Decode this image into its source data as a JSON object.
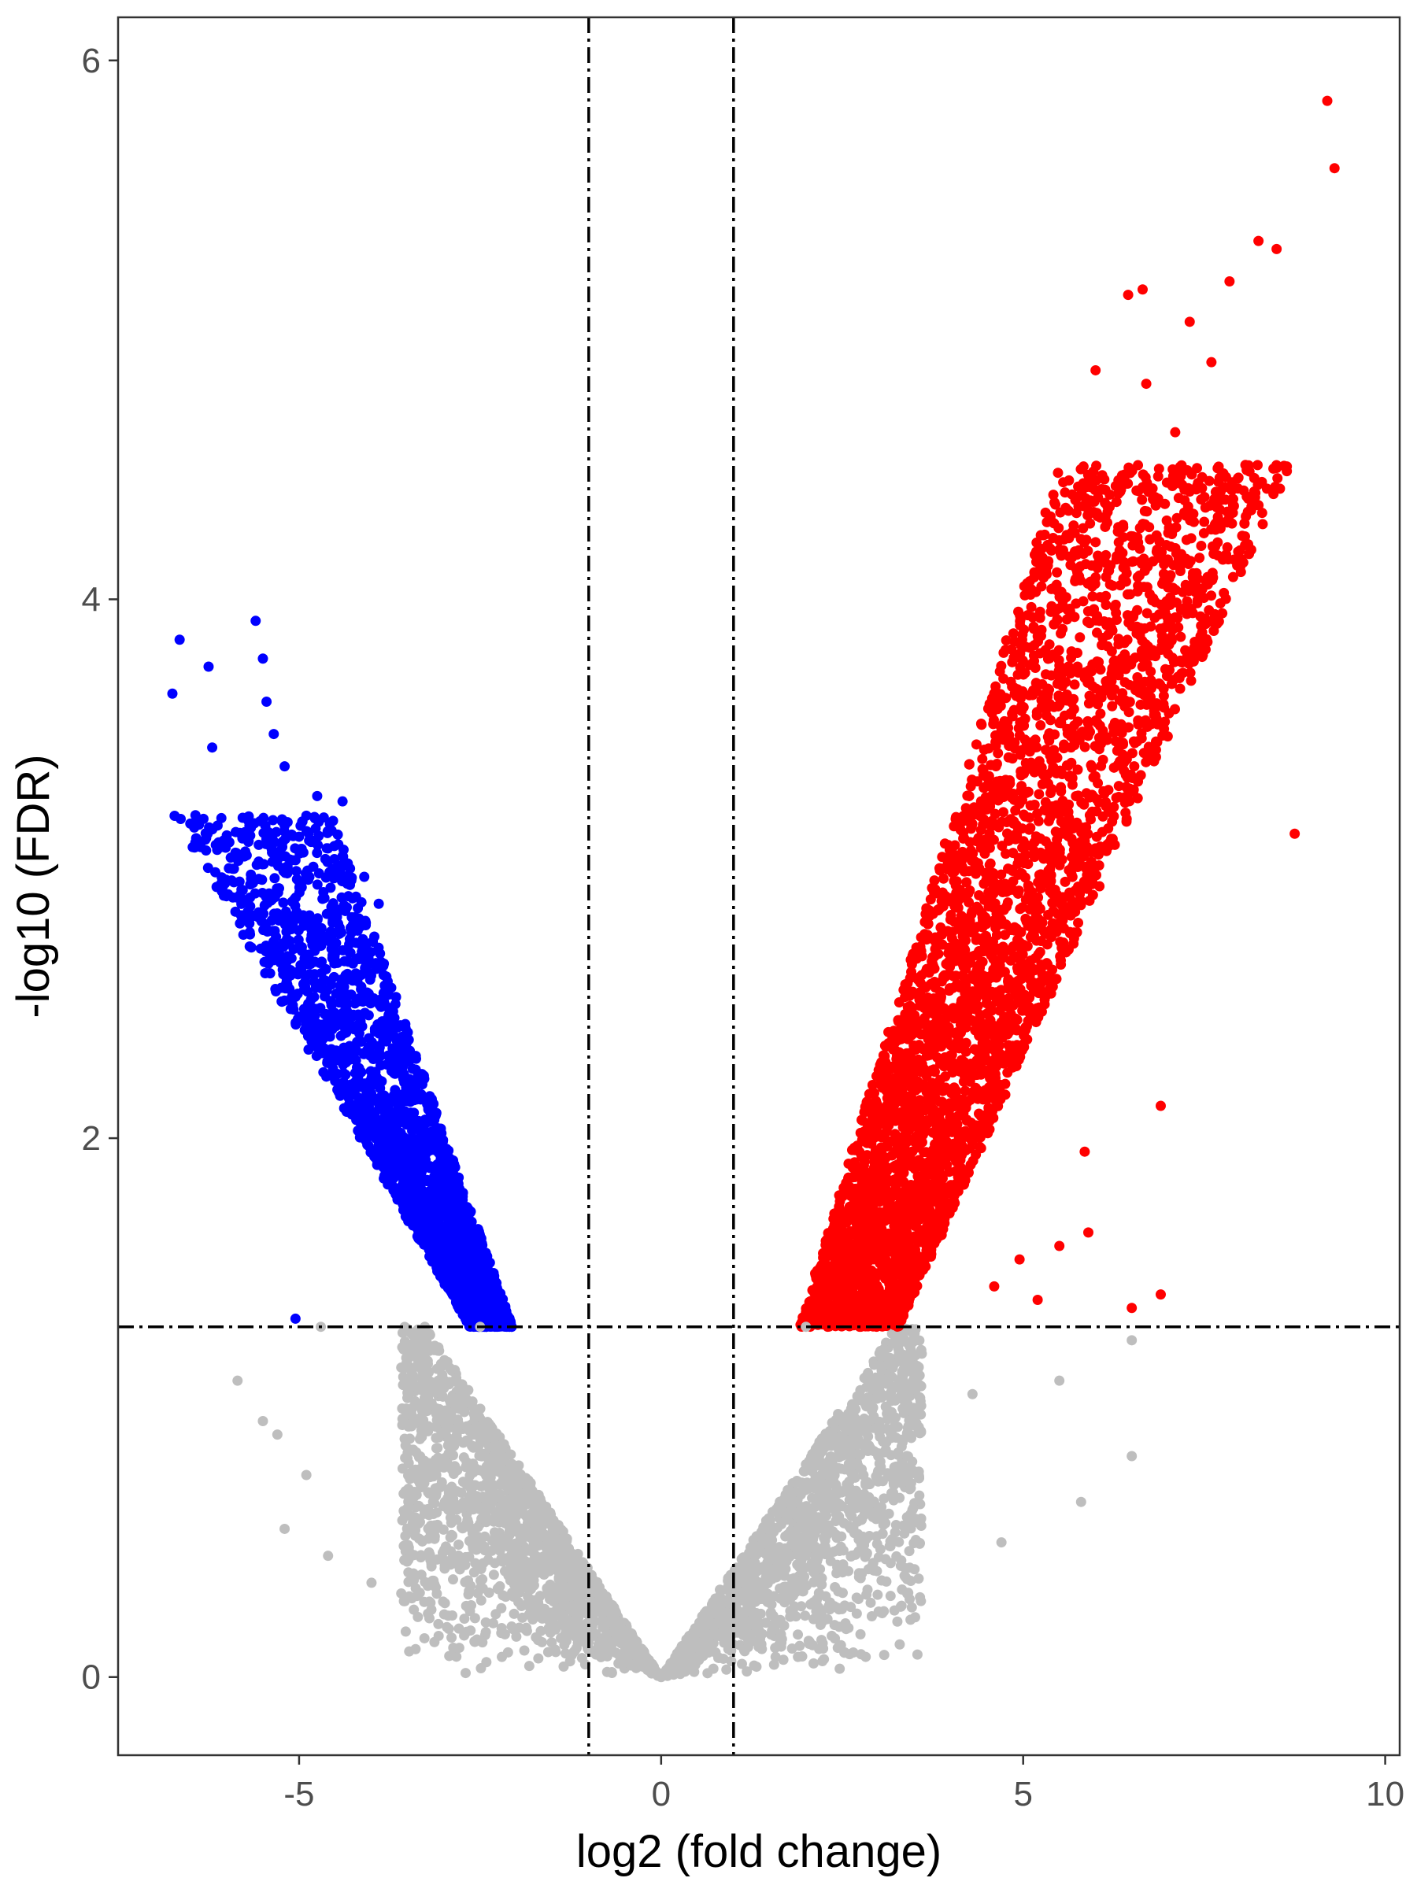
{
  "chart_data": {
    "type": "scatter",
    "title": "",
    "xlabel": "log2 (fold change)",
    "ylabel": "-log10 (FDR)",
    "xlim": [
      -7.5,
      10.2
    ],
    "ylim": [
      -0.29,
      6.16
    ],
    "xticks": [
      -5,
      0,
      5,
      10
    ],
    "yticks": [
      0,
      2,
      4,
      6
    ],
    "grid": false,
    "legend": "none",
    "thresholds": {
      "x": [
        -1,
        1
      ],
      "y": 1.3
    },
    "colors": {
      "down": "#0000ff",
      "up": "#ff0000",
      "nonsignificant": "#bebebe",
      "threshold_line": "#000000"
    },
    "series": [
      {
        "group": "down",
        "approx_range": {
          "x": [
            -6.8,
            -2.1
          ],
          "y": [
            1.3,
            3.9
          ]
        },
        "points": [
          [
            -6.75,
            3.65
          ],
          [
            -6.65,
            3.85
          ],
          [
            -6.25,
            3.75
          ],
          [
            -6.2,
            3.45
          ],
          [
            -5.6,
            3.92
          ],
          [
            -5.5,
            3.78
          ],
          [
            -5.45,
            3.62
          ],
          [
            -5.9,
            3.0
          ],
          [
            -5.7,
            3.1
          ],
          [
            -5.35,
            3.5
          ],
          [
            -5.2,
            3.38
          ],
          [
            -4.75,
            3.27
          ],
          [
            -4.4,
            3.25
          ],
          [
            -4.1,
            2.97
          ],
          [
            -3.9,
            2.87
          ],
          [
            -5.05,
            1.33
          ]
        ]
      },
      {
        "group": "up",
        "approx_range": {
          "x": [
            1.9,
            9.3
          ],
          "y": [
            1.3,
            5.85
          ]
        },
        "points": [
          [
            9.2,
            5.85
          ],
          [
            9.3,
            5.6
          ],
          [
            8.25,
            5.33
          ],
          [
            8.5,
            5.3
          ],
          [
            7.85,
            5.18
          ],
          [
            6.65,
            5.15
          ],
          [
            6.45,
            5.13
          ],
          [
            7.3,
            5.03
          ],
          [
            7.6,
            4.88
          ],
          [
            6.0,
            4.85
          ],
          [
            6.7,
            4.8
          ],
          [
            7.1,
            4.62
          ],
          [
            7.3,
            4.4
          ],
          [
            7.9,
            4.35
          ],
          [
            8.75,
            3.13
          ],
          [
            6.9,
            2.12
          ],
          [
            5.85,
            1.95
          ],
          [
            5.9,
            1.65
          ],
          [
            5.5,
            1.6
          ],
          [
            4.95,
            1.55
          ],
          [
            5.2,
            1.4
          ],
          [
            6.5,
            1.37
          ],
          [
            6.9,
            1.42
          ],
          [
            4.6,
            1.45
          ]
        ]
      },
      {
        "group": "nonsignificant",
        "approx_range": {
          "x": [
            -5.9,
            6.5
          ],
          "y": [
            0.0,
            1.3
          ]
        },
        "points": [
          [
            0.0,
            0.0
          ],
          [
            -5.85,
            1.1
          ],
          [
            -5.5,
            0.95
          ],
          [
            -5.3,
            0.9
          ],
          [
            -4.9,
            0.75
          ],
          [
            -5.2,
            0.55
          ],
          [
            -4.6,
            0.45
          ],
          [
            -4.0,
            0.35
          ],
          [
            -3.2,
            0.28
          ],
          [
            -2.0,
            0.15
          ],
          [
            -1.0,
            0.1
          ],
          [
            1.0,
            0.12
          ],
          [
            2.2,
            0.25
          ],
          [
            3.5,
            0.4
          ],
          [
            4.7,
            0.5
          ],
          [
            5.8,
            0.65
          ],
          [
            6.5,
            0.82
          ],
          [
            6.5,
            1.25
          ],
          [
            5.5,
            1.1
          ],
          [
            4.3,
            1.05
          ],
          [
            3.6,
            1.2
          ],
          [
            -4.7,
            1.3
          ],
          [
            -2.5,
            1.3
          ],
          [
            2.0,
            1.3
          ]
        ]
      }
    ]
  }
}
